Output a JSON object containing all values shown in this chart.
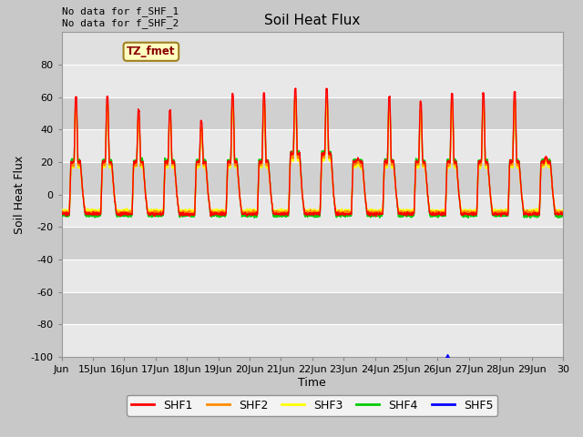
{
  "title": "Soil Heat Flux",
  "ylabel": "Soil Heat Flux",
  "xlabel": "Time",
  "top_left_text_line1": "No data for f_SHF_1",
  "top_left_text_line2": "No data for f_SHF_2",
  "legend_label": "TZ_fmet",
  "ylim": [
    -100,
    100
  ],
  "xlim": [
    14,
    30
  ],
  "xtick_positions": [
    14,
    15,
    16,
    17,
    18,
    19,
    20,
    21,
    22,
    23,
    24,
    25,
    26,
    27,
    28,
    29,
    30
  ],
  "xtick_labels": [
    "Jun",
    "15Jun",
    "16Jun",
    "17Jun",
    "18Jun",
    "19Jun",
    "20Jun",
    "21Jun",
    "22Jun",
    "23Jun",
    "24Jun",
    "25Jun",
    "26Jun",
    "27Jun",
    "28Jun",
    "29Jun",
    "30"
  ],
  "ytick_positions": [
    -100,
    -80,
    -60,
    -40,
    -20,
    0,
    20,
    40,
    60,
    80
  ],
  "series_colors": {
    "SHF1": "#ff0000",
    "SHF2": "#ff8c00",
    "SHF3": "#ffff00",
    "SHF4": "#00cc00",
    "SHF5": "#0000ff"
  },
  "bg_color": "#c8c8c8",
  "plot_bg_color": "#e0e0e0",
  "band_light": "#e8e8e8",
  "band_dark": "#d0d0d0",
  "grid_line_color": "#ffffff"
}
